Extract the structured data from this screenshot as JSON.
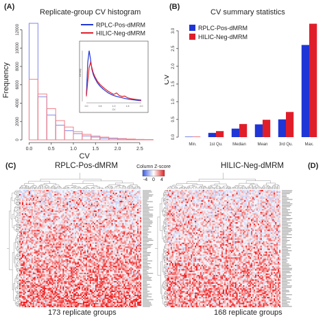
{
  "panels": {
    "a": {
      "letter": "(A)",
      "title": "Replicate-group CV histogram"
    },
    "b": {
      "letter": "(B)",
      "title": "CV summary statistics"
    },
    "c": {
      "letter": "(C)",
      "title": "RPLC-Pos-dMRM",
      "footer": "173 replicate groups"
    },
    "d": {
      "letter": "(D)",
      "title": "HILIC-Neg-dMRM",
      "footer": "168 replicate groups"
    }
  },
  "colors": {
    "rplc": "#1f35d6",
    "hilic": "#e01e2a",
    "rplc_hist": "#7e86e8",
    "hilic_hist": "#f07f88",
    "heat_low": "#3a5ae0",
    "heat_high": "#e01e1e"
  },
  "heatmap_key": {
    "title": "Column Z-score",
    "ticks": [
      "-4",
      "0",
      "4"
    ]
  },
  "chart_data": [
    {
      "type": "bar",
      "panel": "A",
      "title": "Replicate-group CV histogram",
      "xlabel": "CV",
      "ylabel": "Frequency",
      "bin_width": 0.2,
      "bin_starts": [
        0.0,
        0.2,
        0.4,
        0.6,
        0.8,
        1.0,
        1.2,
        1.4,
        1.6,
        1.8,
        2.0,
        2.2,
        2.4,
        2.6
      ],
      "xticks": [
        0.0,
        0.5,
        1.0,
        1.5,
        2.0,
        2.5
      ],
      "yticks": [
        0,
        2000,
        4000,
        6000,
        8000,
        10000,
        12000
      ],
      "xlim": [
        -0.1,
        2.75
      ],
      "ylim": [
        0,
        13000
      ],
      "legend_position": "top-right",
      "series": [
        {
          "name": "RPLC-Pos-dMRM",
          "values": [
            12700,
            4700,
            2700,
            1600,
            1000,
            680,
            430,
            300,
            200,
            140,
            100,
            70,
            40,
            20
          ]
        },
        {
          "name": "HILIC-Neg-dMRM",
          "values": [
            6600,
            5000,
            3400,
            2100,
            1400,
            900,
            600,
            420,
            300,
            200,
            140,
            90,
            50,
            30
          ]
        }
      ],
      "inset": {
        "type": "line",
        "xlabel": "CV",
        "ylabel": "Density",
        "xticks": [
          0.0,
          0.5,
          1.0,
          1.5,
          2.0
        ],
        "xlim": [
          -0.1,
          2.1
        ],
        "ylim": [
          0,
          3.4
        ],
        "x": [
          0.0,
          0.05,
          0.1,
          0.15,
          0.2,
          0.25,
          0.3,
          0.35,
          0.4,
          0.5,
          0.6,
          0.7,
          0.8,
          0.9,
          1.0,
          1.1,
          1.2,
          1.3,
          1.4,
          1.5,
          1.6,
          1.7,
          1.8,
          1.9,
          2.0
        ],
        "series": [
          {
            "name": "RPLC-Pos-dMRM",
            "values": [
              0.4,
              2.3,
              3.0,
              2.5,
              1.9,
              1.6,
              1.4,
              1.25,
              1.1,
              0.9,
              0.75,
              0.62,
              0.5,
              0.42,
              0.35,
              0.3,
              0.26,
              0.22,
              0.18,
              0.15,
              0.12,
              0.1,
              0.08,
              0.06,
              0.05
            ]
          },
          {
            "name": "HILIC-Neg-dMRM",
            "values": [
              0.3,
              1.2,
              2.0,
              2.3,
              2.0,
              1.7,
              1.5,
              1.35,
              1.2,
              1.0,
              0.85,
              0.72,
              0.6,
              0.5,
              0.42,
              0.5,
              0.35,
              0.3,
              0.32,
              0.22,
              0.18,
              0.15,
              0.12,
              0.1,
              0.08
            ]
          }
        ]
      }
    },
    {
      "type": "bar",
      "panel": "B",
      "title": "CV summary statistics",
      "ylabel": "CV",
      "categories": [
        "Min.",
        "1st Qu.",
        "Median",
        "Mean",
        "3rd Qu.",
        "Max."
      ],
      "yticks": [
        0.0,
        0.5,
        1.0,
        1.5,
        2.0,
        2.5,
        3.0
      ],
      "ylim": [
        0,
        3.25
      ],
      "legend_position": "top-left",
      "series": [
        {
          "name": "RPLC-Pos-dMRM",
          "values": [
            0.0,
            0.12,
            0.24,
            0.36,
            0.5,
            2.6
          ]
        },
        {
          "name": "HILIC-Neg-dMRM",
          "values": [
            0.0,
            0.17,
            0.37,
            0.49,
            0.71,
            3.2
          ]
        }
      ]
    },
    {
      "type": "heatmap",
      "panel": "C",
      "title": "RPLC-Pos-dMRM",
      "footer": "173 replicate groups",
      "color_key": {
        "title": "Column Z-score",
        "ticks": [
          "-4",
          "0",
          "4"
        ]
      }
    },
    {
      "type": "heatmap",
      "panel": "D",
      "title": "HILIC-Neg-dMRM",
      "footer": "168 replicate groups"
    }
  ]
}
